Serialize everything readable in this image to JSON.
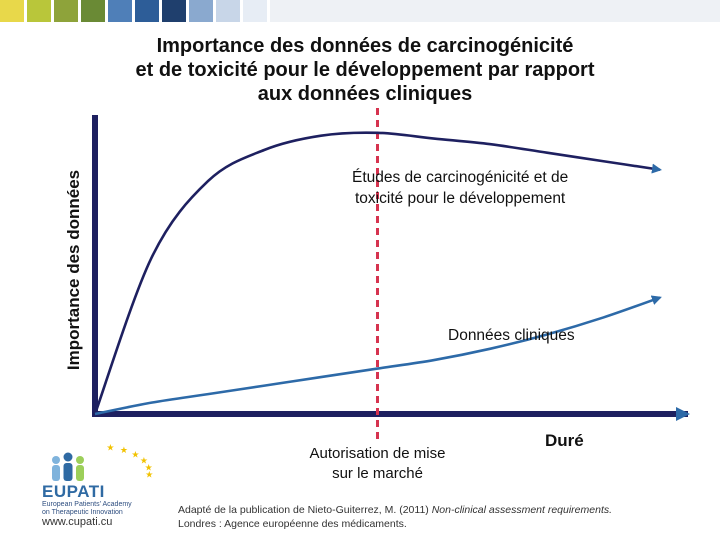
{
  "header": {
    "strip_colors": [
      "#e8d84a",
      "#b9c63a",
      "#8ea33a",
      "#6a8a35",
      "#4f7fb8",
      "#2d5d98",
      "#1f3f6d",
      "#8aa9cf",
      "#c8d6e8",
      "#e7edf5"
    ]
  },
  "title": {
    "line1": "Importance des données de carcinogénicité",
    "line2": "et de toxicité pour le développement par rapport",
    "line3": "aux données cliniques"
  },
  "chart_data": {
    "type": "line",
    "ylabel": "Importance des données",
    "xlabel": "Duré",
    "x": [
      0,
      1,
      2,
      3,
      4,
      5,
      6,
      7,
      8,
      9,
      10
    ],
    "series": [
      {
        "name": "Études de carcinogénicité et de toxicité pour le développement",
        "label_line1": "Études de carcinogénicité et de",
        "label_line2": "toxicité pour le développement",
        "color": "#1e2060",
        "values": [
          0.0,
          0.55,
          0.82,
          0.93,
          0.98,
          0.99,
          0.97,
          0.95,
          0.92,
          0.89,
          0.86
        ]
      },
      {
        "name": "Données cliniques",
        "label_line1": "Données cliniques",
        "label_line2": "",
        "color": "#2d6aa8",
        "values": [
          0.0,
          0.04,
          0.07,
          0.1,
          0.13,
          0.16,
          0.19,
          0.23,
          0.28,
          0.34,
          0.41
        ]
      }
    ],
    "marker": {
      "x": 5,
      "label_line1": "Autorisation de mise",
      "label_line2": "sur le marché",
      "color": "#d6334f"
    },
    "axis_color": "#1e2060",
    "grid": false,
    "legend": "none"
  },
  "footer": {
    "logo_text": "EUPATI",
    "logo_sub1": "European Patients' Academy",
    "logo_sub2": "on Therapeutic Innovation",
    "url": "www.cupati.cu",
    "credit_line1_prefix": "Adapté de la publication de Nieto-Guiterrez, M. (2011) ",
    "credit_line1_italic": "Non-clinical assessment requirements.",
    "credit_line2": "Londres : Agence européenne des médicaments."
  }
}
